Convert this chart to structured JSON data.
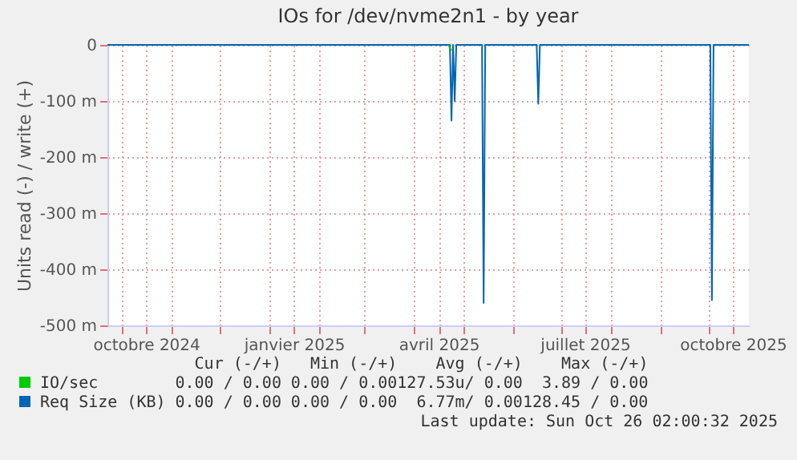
{
  "chart_data": {
    "type": "line",
    "title": "IOs for /dev/nvme2n1 - by year",
    "ylabel": "Units read (-) / write (+)",
    "xlim": [
      "2024-09-22",
      "2025-10-26"
    ],
    "xticks": [
      {
        "value": "2024-10-01",
        "label": null
      },
      {
        "value": "2024-10-16",
        "label": "octobre 2024"
      },
      {
        "value": "2024-11-01",
        "label": null
      },
      {
        "value": "2024-12-01",
        "label": null
      },
      {
        "value": "2025-01-01",
        "label": null
      },
      {
        "value": "2025-01-16",
        "label": "janvier 2025"
      },
      {
        "value": "2025-02-01",
        "label": null
      },
      {
        "value": "2025-03-01",
        "label": null
      },
      {
        "value": "2025-04-01",
        "label": null
      },
      {
        "value": "2025-04-16",
        "label": "avril 2025"
      },
      {
        "value": "2025-05-01",
        "label": null
      },
      {
        "value": "2025-06-01",
        "label": null
      },
      {
        "value": "2025-07-01",
        "label": null
      },
      {
        "value": "2025-07-16",
        "label": "juillet 2025"
      },
      {
        "value": "2025-08-01",
        "label": null
      },
      {
        "value": "2025-09-01",
        "label": null
      },
      {
        "value": "2025-10-01",
        "label": null
      },
      {
        "value": "2025-10-16",
        "label": "octobre 2025"
      }
    ],
    "ylim": [
      -500,
      0
    ],
    "yticks": [
      {
        "value": -500,
        "label": "-500 m"
      },
      {
        "value": -400,
        "label": "-400 m"
      },
      {
        "value": -300,
        "label": "-300 m"
      },
      {
        "value": -200,
        "label": "-200 m"
      },
      {
        "value": -100,
        "label": "-100 m"
      },
      0
    ],
    "grid": true,
    "legend": "bottom",
    "marker": "none",
    "line_style": "solid",
    "series": [
      {
        "name": "IO/sec",
        "color": "#00cc00",
        "x": [
          "2025-04-22",
          "2025-04-24"
        ],
        "values": [
          0,
          -10
        ]
      },
      {
        "name": "Req Size (KB)",
        "color": "#0066b3",
        "x": [
          "2024-09-22",
          "2025-04-23",
          "2025-04-24",
          "2025-04-25",
          "2025-04-26",
          "2025-04-27",
          "2025-05-13",
          "2025-05-14",
          "2025-05-15",
          "2025-06-16",
          "2025-06-17",
          "2025-06-18",
          "2025-10-02",
          "2025-10-03",
          "2025-10-04",
          "2025-10-26"
        ],
        "values": [
          0,
          0,
          -135,
          0,
          -100,
          0,
          0,
          -460,
          0,
          0,
          -105,
          0,
          0,
          -455,
          0,
          0
        ]
      }
    ],
    "annotations": [
      "Cur (-/+)",
      "Min (-/+)",
      "Avg (-/+)",
      "Max (-/+)",
      "0.00 / 0.00",
      "0.00 / 0.00",
      "127.53u/ 0.00",
      "3.89 / 0.00",
      "0.00 / 0.00",
      "0.00 / 0.00",
      "6.77m/ 0.00",
      "128.45 / 0.00",
      "Last update: Sun Oct 26 02:00:32 2025"
    ]
  }
}
